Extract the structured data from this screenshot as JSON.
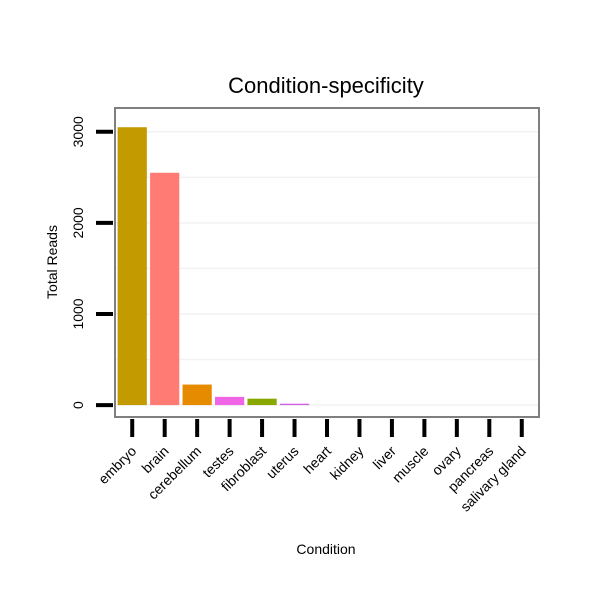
{
  "chart_data": {
    "type": "bar",
    "title": "Condition-specificity",
    "xlabel": "Condition",
    "ylabel": "Total Reads",
    "categories": [
      "embryo",
      "brain",
      "cerebellum",
      "testes",
      "fibroblast",
      "uterus",
      "heart",
      "kidney",
      "liver",
      "muscle",
      "ovary",
      "pancreas",
      "salivary gland"
    ],
    "values": [
      3050,
      2550,
      225,
      90,
      70,
      15,
      0,
      0,
      0,
      0,
      0,
      0,
      0
    ],
    "colors": [
      "#C39A00",
      "#FF7B73",
      "#E68A00",
      "#F065E6",
      "#88A800",
      "#D560E6",
      "#000000",
      "#000000",
      "#000000",
      "#000000",
      "#000000",
      "#000000",
      "#000000"
    ],
    "yticks": [
      0,
      1000,
      2000,
      3000
    ],
    "ylim": [
      -120,
      3250
    ],
    "grid": true,
    "legend": "none"
  }
}
